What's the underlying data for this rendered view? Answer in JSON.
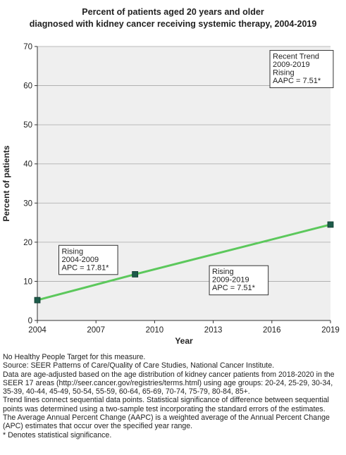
{
  "chart_data": {
    "type": "line",
    "title_lines": [
      "Percent of patients aged 20 years and older",
      "diagnosed with kidney cancer receiving systemic therapy, 2004-2019"
    ],
    "xlabel": "Year",
    "ylabel": "Percent of patients",
    "xlim": [
      2004,
      2019
    ],
    "ylim": [
      0,
      70
    ],
    "xticks": [
      2004,
      2007,
      2010,
      2013,
      2016,
      2019
    ],
    "yticks": [
      0,
      10,
      20,
      30,
      40,
      50,
      60,
      70
    ],
    "grid": true,
    "series": [
      {
        "color": "#5cc85c",
        "marker_color": "#1d5b4a",
        "points": [
          {
            "x": 2004,
            "y": 5.2
          },
          {
            "x": 2009,
            "y": 11.8
          },
          {
            "x": 2019,
            "y": 24.5
          }
        ]
      }
    ],
    "annotations": [
      {
        "lines": [
          "Rising",
          "2004-2009",
          "APC = 17.81*"
        ],
        "anchor_x": 2005.1,
        "anchor_y": 19.2
      },
      {
        "lines": [
          "Rising",
          "2009-2019",
          "APC =  7.51*"
        ],
        "anchor_x": 2012.8,
        "anchor_y": 14.0
      },
      {
        "lines": [
          "Recent Trend",
          "2009-2019",
          "Rising",
          "AAPC =  7.51*"
        ],
        "anchor_x": 2015.9,
        "anchor_y": 69.0
      }
    ]
  },
  "notes": [
    "No Healthy People Target for this measure.",
    "Source: SEER Patterns of Care/Quality of Care Studies, National Cancer Institute.",
    "Data are age-adjusted based on the age distribution of kidney cancer patients from 2018-2020 in the SEER 17 areas (http://seer.cancer.gov/registries/terms.html) using age groups: 20-24, 25-29, 30-34, 35-39, 40-44, 45-49, 50-54, 55-59, 60-64, 65-69, 70-74, 75-79, 80-84, 85+.",
    "Trend lines connect sequential data points. Statistical significance of difference between sequential points was determined using a two-sample test incorporating the standard errors of the estimates.",
    "The Average Annual Percent Change (AAPC) is a weighted average of the Annual Percent Change (APC) estimates that occur over the specified year range.",
    "* Denotes statistical significance."
  ]
}
